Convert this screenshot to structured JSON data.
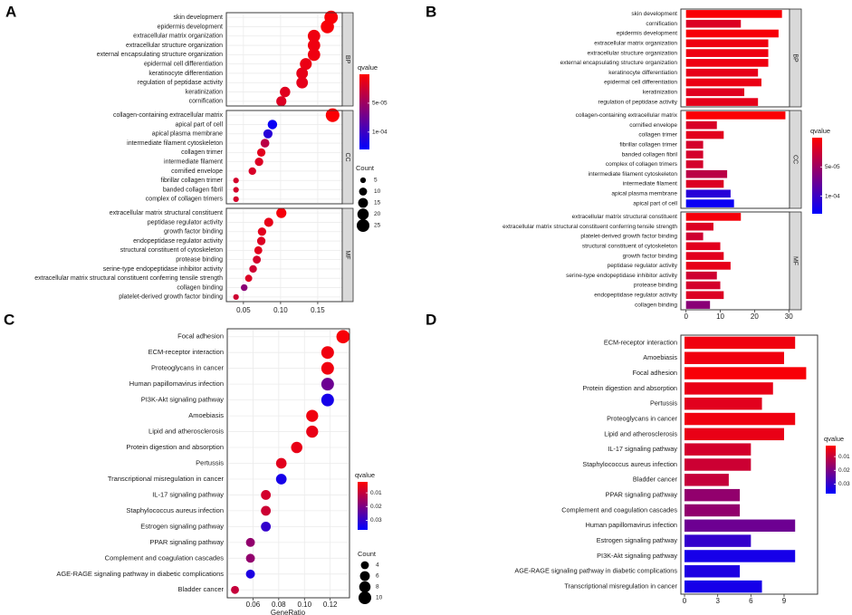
{
  "chart_data": [
    {
      "type": "dot",
      "label": "A",
      "facets": [
        {
          "name": "BP",
          "categories": [
            "skin development",
            "epidermis development",
            "extracellular matrix organization",
            "extracellular structure organization",
            "external encapsulating structure organization",
            "epidermal cell differentiation",
            "keratinocyte differentiation",
            "regulation of peptidase activity",
            "keratinization",
            "cornification"
          ],
          "values": [
            0.168,
            0.163,
            0.145,
            0.145,
            0.145,
            0.134,
            0.129,
            0.129,
            0.106,
            0.101
          ],
          "sizes": [
            28,
            27,
            24,
            24,
            24,
            22,
            21,
            21,
            17,
            16
          ],
          "qvalues": [
            3e-06,
            4e-06,
            8e-06,
            8e-06,
            8e-06,
            1e-05,
            1.2e-05,
            1.3e-05,
            1.6e-05,
            1.8e-05
          ]
        },
        {
          "name": "CC",
          "categories": [
            "collagen-containing extracellular matrix",
            "apical part of cell",
            "apical plasma membrane",
            "intermediate filament cytoskeleton",
            "collagen trimer",
            "intermediate filament",
            "cornified envelope",
            "fibrillar collagen trimer",
            "banded collagen fibril",
            "complex of collagen trimers"
          ],
          "values": [
            0.17,
            0.089,
            0.083,
            0.079,
            0.074,
            0.071,
            0.062,
            0.04,
            0.04,
            0.04
          ],
          "sizes": [
            29,
            14,
            13,
            12,
            11,
            11,
            9,
            5,
            5,
            5
          ],
          "qvalues": [
            2e-06,
            0.000125,
            0.00011,
            3.5e-05,
            1.5e-05,
            1.8e-05,
            2e-05,
            2.2e-05,
            2.2e-05,
            2.2e-05
          ]
        },
        {
          "name": "MF",
          "categories": [
            "extracellular matrix structural constituent",
            "peptidase regulator activity",
            "growth factor binding",
            "endopeptidase regulator activity",
            "structural constituent of cytoskeleton",
            "protease binding",
            "serine-type endopeptidase inhibitor activity",
            "extracellular matrix structural constituent conferring tensile strength",
            "collagen binding",
            "platelet-derived growth factor binding"
          ],
          "values": [
            0.101,
            0.084,
            0.075,
            0.074,
            0.07,
            0.068,
            0.063,
            0.057,
            0.051,
            0.04
          ],
          "sizes": [
            16,
            13,
            11,
            11,
            10,
            10,
            9,
            8,
            7,
            5
          ],
          "qvalues": [
            5e-06,
            1.2e-05,
            1.5e-05,
            1.8e-05,
            1.5e-05,
            2.2e-05,
            2.5e-05,
            1.8e-05,
            6e-05,
            2.5e-05
          ]
        }
      ],
      "xlim": [
        0.027,
        0.183
      ],
      "xticks": [
        0.05,
        {
          "value": 0.1,
          "label": "0.10"
        },
        0.15
      ],
      "grid": true,
      "colorbar": {
        "title": "qvalue",
        "low": "#FF0000",
        "high": "#0000FF",
        "lim": [
          0,
          0.00013
        ],
        "ticks": [
          {
            "value": 5e-05,
            "label": "5e-05"
          },
          {
            "value": 0.0001,
            "label": "1e-04"
          }
        ]
      },
      "size_legend": {
        "title": "Count",
        "values": [
          5,
          10,
          15,
          20,
          25
        ]
      }
    },
    {
      "type": "bar",
      "label": "B",
      "facets": [
        {
          "name": "BP",
          "categories": [
            "skin development",
            "cornification",
            "epidermis development",
            "extracellular matrix organization",
            "extracellular structure organization",
            "external encapsulating structure organization",
            "keratinocyte differentiation",
            "epidermal cell differentiation",
            "keratinization",
            "regulation of peptidase activity"
          ],
          "values": [
            28,
            16,
            27,
            24,
            24,
            24,
            21,
            22,
            17,
            21
          ],
          "qvalues": [
            3e-06,
            1.8e-05,
            4e-06,
            8e-06,
            8e-06,
            8e-06,
            1.2e-05,
            1e-05,
            1.6e-05,
            1.3e-05
          ]
        },
        {
          "name": "CC",
          "categories": [
            "collagen-containing extracellular matrix",
            "cornified envelope",
            "collagen trimer",
            "fibrillar collagen trimer",
            "banded collagen fibril",
            "complex of collagen trimers",
            "intermediate filament cytoskeleton",
            "intermediate filament",
            "apical plasma membrane",
            "apical part of cell"
          ],
          "values": [
            29,
            9,
            11,
            5,
            5,
            5,
            12,
            11,
            13,
            14
          ],
          "qvalues": [
            2e-06,
            2e-05,
            1.5e-05,
            2.2e-05,
            2.2e-05,
            2.2e-05,
            3.5e-05,
            1.8e-05,
            0.00011,
            0.000125
          ]
        },
        {
          "name": "MF",
          "categories": [
            "extracellular matrix structural constituent",
            "extracellular matrix structural constituent conferring tensile strength",
            "platelet-derived growth factor binding",
            "structural constituent of cytoskeleton",
            "growth factor binding",
            "peptidase regulator activity",
            "serine-type endopeptidase inhibitor activity",
            "protease binding",
            "endopeptidase regulator activity",
            "collagen binding"
          ],
          "values": [
            16,
            8,
            5,
            10,
            11,
            13,
            9,
            10,
            11,
            7
          ],
          "qvalues": [
            5e-06,
            1.8e-05,
            2.5e-05,
            1.5e-05,
            1.5e-05,
            1.2e-05,
            2.5e-05,
            2.2e-05,
            1.8e-05,
            6e-05
          ]
        }
      ],
      "xlim": [
        -1.5,
        30.2
      ],
      "xticks": [
        0,
        10,
        20,
        30
      ],
      "grid": false,
      "colorbar": {
        "title": "qvalue",
        "low": "#FF0000",
        "high": "#0000FF",
        "lim": [
          0,
          0.00013
        ],
        "ticks": [
          {
            "value": 5e-05,
            "label": "5e-05"
          },
          {
            "value": 0.0001,
            "label": "1e-04"
          }
        ]
      }
    },
    {
      "type": "dot",
      "label": "C",
      "categories": [
        "Focal adhesion",
        "ECM-receptor interaction",
        "Proteoglycans in cancer",
        "Human papillomavirus infection",
        "PI3K-Akt signaling pathway",
        "Amoebiasis",
        "Lipid and atherosclerosis",
        "Protein digestion and absorption",
        "Pertussis",
        "Transcriptional misregulation in cancer",
        "IL-17 signaling pathway",
        "Staphylococcus aureus infection",
        "Estrogen signaling pathway",
        "PPAR signaling pathway",
        "Complement and coagulation cascades",
        "AGE-RAGE signaling pathway in diabetic complications",
        "Bladder cancer"
      ],
      "values": [
        0.13,
        0.118,
        0.118,
        0.118,
        0.118,
        0.106,
        0.106,
        0.094,
        0.082,
        0.082,
        0.07,
        0.07,
        0.07,
        0.058,
        0.058,
        0.058,
        0.046
      ],
      "sizes": [
        11,
        10,
        10,
        10,
        10,
        9,
        9,
        8,
        7,
        7,
        6,
        6,
        6,
        5,
        5,
        5,
        4
      ],
      "qvalues": [
        0.003,
        0.004,
        0.004,
        0.022,
        0.034,
        0.004,
        0.005,
        0.005,
        0.006,
        0.034,
        0.008,
        0.009,
        0.03,
        0.017,
        0.017,
        0.033,
        0.01
      ],
      "xlabel": "GeneRatio",
      "xlim": [
        0.04,
        0.135
      ],
      "xticks": [
        0.06,
        0.08,
        {
          "value": 0.1,
          "label": "0.10"
        },
        0.12
      ],
      "grid": true,
      "colorbar": {
        "title": "qvalue",
        "low": "#FF0000",
        "high": "#0000FF",
        "lim": [
          0.002,
          0.037
        ],
        "ticks": [
          0.01,
          0.02,
          0.03
        ]
      },
      "size_legend": {
        "title": "Count",
        "values": [
          4,
          6,
          8,
          10
        ]
      }
    },
    {
      "type": "bar",
      "label": "D",
      "categories": [
        "ECM-receptor interaction",
        "Amoebiasis",
        "Focal adhesion",
        "Protein digestion and absorption",
        "Pertussis",
        "Proteoglycans in cancer",
        "Lipid and atherosclerosis",
        "IL-17 signaling pathway",
        "Staphylococcus aureus infection",
        "Bladder cancer",
        "PPAR signaling pathway",
        "Complement and coagulation cascades",
        "Human papillomavirus infection",
        "Estrogen signaling pathway",
        "PI3K-Akt signaling pathway",
        "AGE-RAGE signaling pathway in diabetic complications",
        "Transcriptional misregulation in cancer"
      ],
      "values": [
        10,
        9,
        11,
        8,
        7,
        10,
        9,
        6,
        6,
        4,
        5,
        5,
        10,
        6,
        10,
        5,
        7
      ],
      "qvalues": [
        0.004,
        0.004,
        0.003,
        0.005,
        0.006,
        0.004,
        0.005,
        0.008,
        0.009,
        0.01,
        0.017,
        0.017,
        0.022,
        0.03,
        0.034,
        0.033,
        0.034
      ],
      "xlim": [
        -0.33,
        12.03
      ],
      "xticks": [
        0,
        3,
        6,
        9
      ],
      "grid": false,
      "colorbar": {
        "title": "qvalue",
        "low": "#FF0000",
        "high": "#0000FF",
        "lim": [
          0.002,
          0.037
        ],
        "ticks": [
          0.01,
          0.02,
          0.03
        ]
      }
    }
  ]
}
